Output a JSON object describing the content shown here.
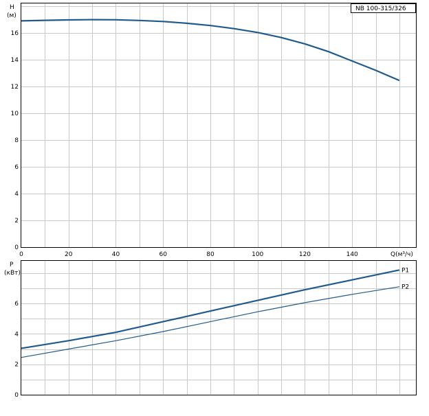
{
  "chart_data": [
    {
      "type": "line",
      "ylabel_top": "H",
      "ylabel_unit": "(м)",
      "xlabel": "Q(м³/ч)",
      "model": "NB 100-315/326",
      "xlim": [
        0,
        167
      ],
      "ylim": [
        0,
        18.2
      ],
      "xticks": [
        0,
        20,
        40,
        60,
        80,
        100,
        120,
        140
      ],
      "yticks": [
        0,
        2,
        4,
        6,
        8,
        10,
        12,
        14,
        16
      ],
      "series": [
        {
          "color": "#1f5a8c",
          "x": [
            0,
            10,
            20,
            30,
            40,
            50,
            60,
            70,
            80,
            90,
            100,
            110,
            120,
            130,
            140,
            150,
            160
          ],
          "y": [
            16.9,
            16.94,
            16.97,
            16.99,
            16.98,
            16.93,
            16.85,
            16.72,
            16.55,
            16.32,
            16.03,
            15.65,
            15.18,
            14.6,
            13.9,
            13.2,
            12.45
          ]
        }
      ]
    },
    {
      "type": "line",
      "ylabel_top": "P",
      "ylabel_unit": "(кВт)",
      "xlim": [
        0,
        167
      ],
      "ylim": [
        0,
        8.8
      ],
      "xticks": [
        0,
        20,
        40,
        60,
        80,
        100,
        120,
        140,
        160
      ],
      "yticks": [
        0,
        2,
        4,
        6
      ],
      "series": [
        {
          "name": "P1",
          "color": "#1f5a8c",
          "x": [
            0,
            20,
            40,
            60,
            80,
            100,
            120,
            140,
            160
          ],
          "y": [
            3.05,
            3.55,
            4.1,
            4.8,
            5.5,
            6.2,
            6.9,
            7.55,
            8.2
          ]
        },
        {
          "name": "P2",
          "color": "#1f5a8c",
          "x": [
            0,
            20,
            40,
            60,
            80,
            100,
            120,
            140,
            160
          ],
          "y": [
            2.45,
            3.0,
            3.55,
            4.15,
            4.8,
            5.45,
            6.05,
            6.6,
            7.1
          ]
        }
      ]
    }
  ]
}
